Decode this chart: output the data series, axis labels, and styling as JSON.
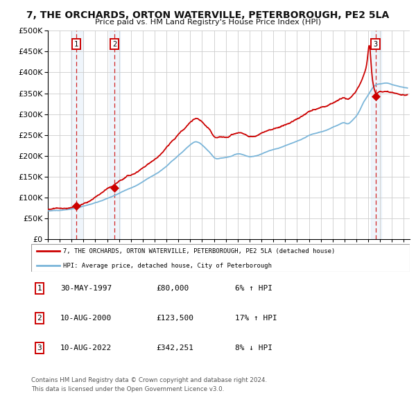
{
  "title": "7, THE ORCHARDS, ORTON WATERVILLE, PETERBOROUGH, PE2 5LA",
  "subtitle": "Price paid vs. HM Land Registry's House Price Index (HPI)",
  "legend_line1": "7, THE ORCHARDS, ORTON WATERVILLE, PETERBOROUGH, PE2 5LA (detached house)",
  "legend_line2": "HPI: Average price, detached house, City of Peterborough",
  "sale1_date": "30-MAY-1997",
  "sale1_price": 80000,
  "sale1_pct": "6% ↑ HPI",
  "sale1_year": 1997.41,
  "sale2_date": "10-AUG-2000",
  "sale2_price": 123500,
  "sale2_pct": "17% ↑ HPI",
  "sale2_year": 2000.61,
  "sale3_date": "10-AUG-2022",
  "sale3_price": 342251,
  "sale3_pct": "8% ↓ HPI",
  "sale3_year": 2022.61,
  "footer1": "Contains HM Land Registry data © Crown copyright and database right 2024.",
  "footer2": "This data is licensed under the Open Government Licence v3.0.",
  "xmin": 1995.0,
  "xmax": 2025.5,
  "ymin": 0,
  "ymax": 500000,
  "hpi_color": "#7ab5d9",
  "property_color": "#cc0000",
  "shade_color": "#ddeeff",
  "grid_color": "#cccccc",
  "bg_color": "#ffffff",
  "dashed_line_color": "#cc0000",
  "marker_color": "#cc0000"
}
